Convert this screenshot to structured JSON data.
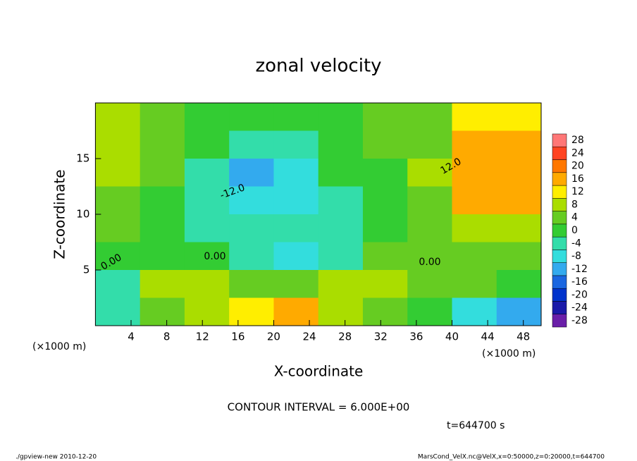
{
  "chart_data": {
    "type": "heatmap",
    "title": "zonal velocity",
    "x_label": "X-coordinate",
    "y_label": "Z-coordinate",
    "unit_labels": [
      "(×1000 m)",
      "(×1000 m)"
    ],
    "xlim": [
      0,
      50
    ],
    "xticks": [
      4,
      8,
      12,
      16,
      20,
      24,
      28,
      32,
      36,
      40,
      44,
      48
    ],
    "ylim": [
      0,
      20
    ],
    "yticks": [
      5,
      10,
      15
    ],
    "x": [
      2.5,
      7.5,
      12.5,
      17.5,
      22.5,
      27.5,
      32.5,
      37.5,
      42.5,
      47.5
    ],
    "z": [
      18.75,
      16.25,
      13.75,
      11.25,
      8.75,
      6.25,
      3.75,
      1.25
    ],
    "values": [
      [
        8,
        4,
        0,
        -2,
        0,
        0,
        2,
        4,
        10,
        10
      ],
      [
        8,
        4,
        -2,
        -6,
        -4,
        0,
        2,
        4,
        14,
        14
      ],
      [
        6,
        2,
        -4,
        -12,
        -10,
        -2,
        0,
        6,
        16,
        16
      ],
      [
        4,
        0,
        -6,
        -10,
        -8,
        -4,
        0,
        4,
        14,
        14
      ],
      [
        2,
        -2,
        -4,
        -6,
        -6,
        -4,
        0,
        2,
        6,
        8
      ],
      [
        -2,
        0,
        -2,
        -6,
        -8,
        -6,
        2,
        2,
        2,
        2
      ],
      [
        -4,
        6,
        6,
        4,
        4,
        6,
        8,
        4,
        2,
        0
      ],
      [
        -6,
        4,
        8,
        12,
        16,
        6,
        2,
        -2,
        -10,
        -12
      ]
    ],
    "colorbar": {
      "levels": [
        -28,
        -24,
        -20,
        -16,
        -12,
        -8,
        -4,
        0,
        4,
        8,
        12,
        16,
        20,
        24,
        28
      ],
      "colors": [
        "#6a1fa8",
        "#1a1aa8",
        "#0033cc",
        "#1a66e0",
        "#33aaee",
        "#33dddd",
        "#33ddaa",
        "#33cc33",
        "#66cc22",
        "#aadd00",
        "#ffee00",
        "#ffaa00",
        "#ff7700",
        "#ff4422",
        "#ff7777"
      ]
    },
    "contour_labels": [
      "0.00",
      "0.00",
      "0.00",
      "12.0",
      "-12.0"
    ],
    "contour_interval": "CONTOUR INTERVAL = 6.000E+00",
    "time_label": "t=644700 s",
    "footer_left": "./gpview-new  2010-12-20",
    "footer_right": "MarsCond_VelX.nc@VelX,x=0:50000,z=0:20000,t=644700"
  }
}
